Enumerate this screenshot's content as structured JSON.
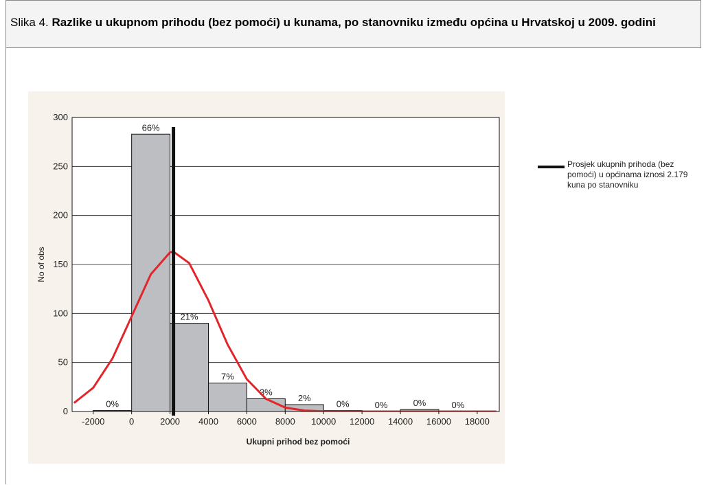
{
  "figure": {
    "label": "Slika 4.",
    "title": "Razlike u ukupnom prihodu (bez pomoći) u kunama, po stanovniku između općina u Hrvatskoj u 2009. godini"
  },
  "chart_data": {
    "type": "histogram",
    "bins": [
      -2000,
      0,
      2000,
      4000,
      6000,
      8000,
      10000,
      12000,
      14000,
      16000,
      18000
    ],
    "counts": [
      1,
      283,
      90,
      29,
      13,
      7,
      1,
      0,
      2,
      0
    ],
    "percent_labels": [
      "0%",
      "66%",
      "21%",
      "7%",
      "3%",
      "2%",
      "0%",
      "0%",
      "0%",
      "0%"
    ],
    "color": "#bcbec1",
    "xlim": [
      -3100,
      19150
    ],
    "xticks": [
      -2000,
      0,
      2000,
      4000,
      6000,
      8000,
      10000,
      12000,
      14000,
      16000,
      18000
    ],
    "ylim": [
      0,
      300
    ],
    "yticks": [
      0,
      50,
      100,
      150,
      200,
      250,
      300
    ],
    "grid": true,
    "xlabel": "Ukupni prihod bez pomoći",
    "ylabel": "No of obs",
    "curve": {
      "color": "#e0262b",
      "x": [
        -3000,
        -2000,
        -1000,
        0,
        1000,
        2000,
        2179,
        3000,
        4000,
        5000,
        6000,
        7000,
        8000,
        9000,
        10000,
        11000,
        12000,
        14000,
        16000,
        18000,
        19000
      ],
      "values": [
        8.7,
        24.2,
        54,
        97,
        140,
        162.4,
        163,
        151.4,
        113.4,
        68.3,
        33,
        12.9,
        4,
        1,
        0.2,
        0,
        0,
        0,
        0,
        0,
        0
      ]
    },
    "mean": {
      "value": 2179,
      "label": "Prosjek ukupnih prihoda (bez pomoći) u općinama iznosi 2.179 kuna po stanovniku",
      "color": "#111111"
    }
  }
}
